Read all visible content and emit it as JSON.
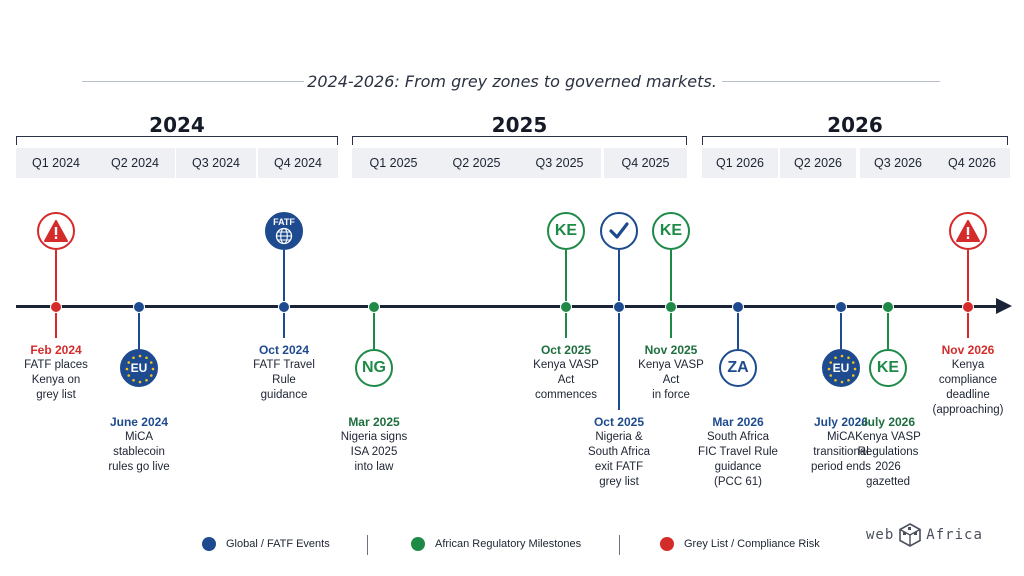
{
  "title": "2024-2026: From grey zones to governed markets.",
  "colors": {
    "global": "#1e4b8f",
    "african": "#1f8a48",
    "risk": "#d42b2b"
  },
  "years": [
    {
      "label": "2024",
      "quarters": [
        "Q1 2024",
        "Q2 2024",
        "Q3 2024",
        "Q4 2024"
      ]
    },
    {
      "label": "2025",
      "quarters": [
        "Q1 2025",
        "Q2 2025",
        "Q3 2025",
        "Q4 2025"
      ]
    },
    {
      "label": "2026",
      "quarters": [
        "Q1 2026",
        "Q2 2026",
        "Q3 2026",
        "Q4 2026"
      ]
    }
  ],
  "events": [
    {
      "id": "feb-2024",
      "category": "risk",
      "icon": "warning-icon",
      "side": "up-badge",
      "date": "Feb 2024",
      "text": "FATF places\nKenya on\ngrey list"
    },
    {
      "id": "june-2024",
      "category": "global",
      "icon": "eu-flag-icon",
      "badge": "EU",
      "side": "down-badge",
      "date": "June 2024",
      "text": "MiCA\nstablecoin\nrules go live"
    },
    {
      "id": "oct-2024",
      "category": "global",
      "icon": "fatf-globe-icon",
      "badge": "FATF",
      "side": "up-badge",
      "date": "Oct 2024",
      "text": "FATF Travel\nRule\nguidance"
    },
    {
      "id": "mar-2025",
      "category": "african",
      "icon": "nigeria-icon",
      "badge": "NG",
      "side": "down-badge",
      "date": "Mar 2025",
      "text": "Nigeria signs\nISA 2025\ninto law"
    },
    {
      "id": "oct-2025-ke",
      "category": "african",
      "icon": "kenya-icon",
      "badge": "KE",
      "side": "up-badge",
      "date": "Oct 2025",
      "text": "Kenya VASP\nAct\ncommences"
    },
    {
      "id": "oct-2025-exit",
      "category": "global",
      "icon": "checkmark-icon",
      "side": "up-badge",
      "date": "Oct 2025",
      "text": "Nigeria &\nSouth Africa\nexit FATF\ngrey list"
    },
    {
      "id": "nov-2025",
      "category": "african",
      "icon": "kenya-icon",
      "badge": "KE",
      "side": "up-badge",
      "date": "Nov 2025",
      "text": "Kenya VASP\nAct\nin force"
    },
    {
      "id": "mar-2026",
      "category": "global",
      "icon": "south-africa-icon",
      "badge": "ZA",
      "side": "down-badge",
      "date": "Mar 2026",
      "text": "South Africa\nFIC Travel Rule\nguidance\n(PCC 61)"
    },
    {
      "id": "july-2026-eu",
      "category": "global",
      "icon": "eu-flag-icon",
      "badge": "EU",
      "side": "down-badge",
      "date": "July 2026",
      "text": "MiCA\ntransitional\nperiod ends"
    },
    {
      "id": "july-2026-ke",
      "category": "african",
      "icon": "kenya-icon",
      "badge": "KE",
      "side": "down-badge",
      "date": "July 2026",
      "text": "Kenya VASP\nRegulations\n2026\ngazetted"
    },
    {
      "id": "nov-2026",
      "category": "risk",
      "icon": "warning-icon",
      "side": "up-badge",
      "date": "Nov 2026",
      "text": "Kenya\ncompliance\ndeadline\n(approaching)"
    }
  ],
  "legend": [
    {
      "category": "global",
      "label": "Global / FATF Events"
    },
    {
      "category": "african",
      "label": "African Regulatory Milestones"
    },
    {
      "category": "risk",
      "label": "Grey List / Compliance Risk"
    }
  ],
  "logo": {
    "left": "web",
    "right": "Africa"
  }
}
